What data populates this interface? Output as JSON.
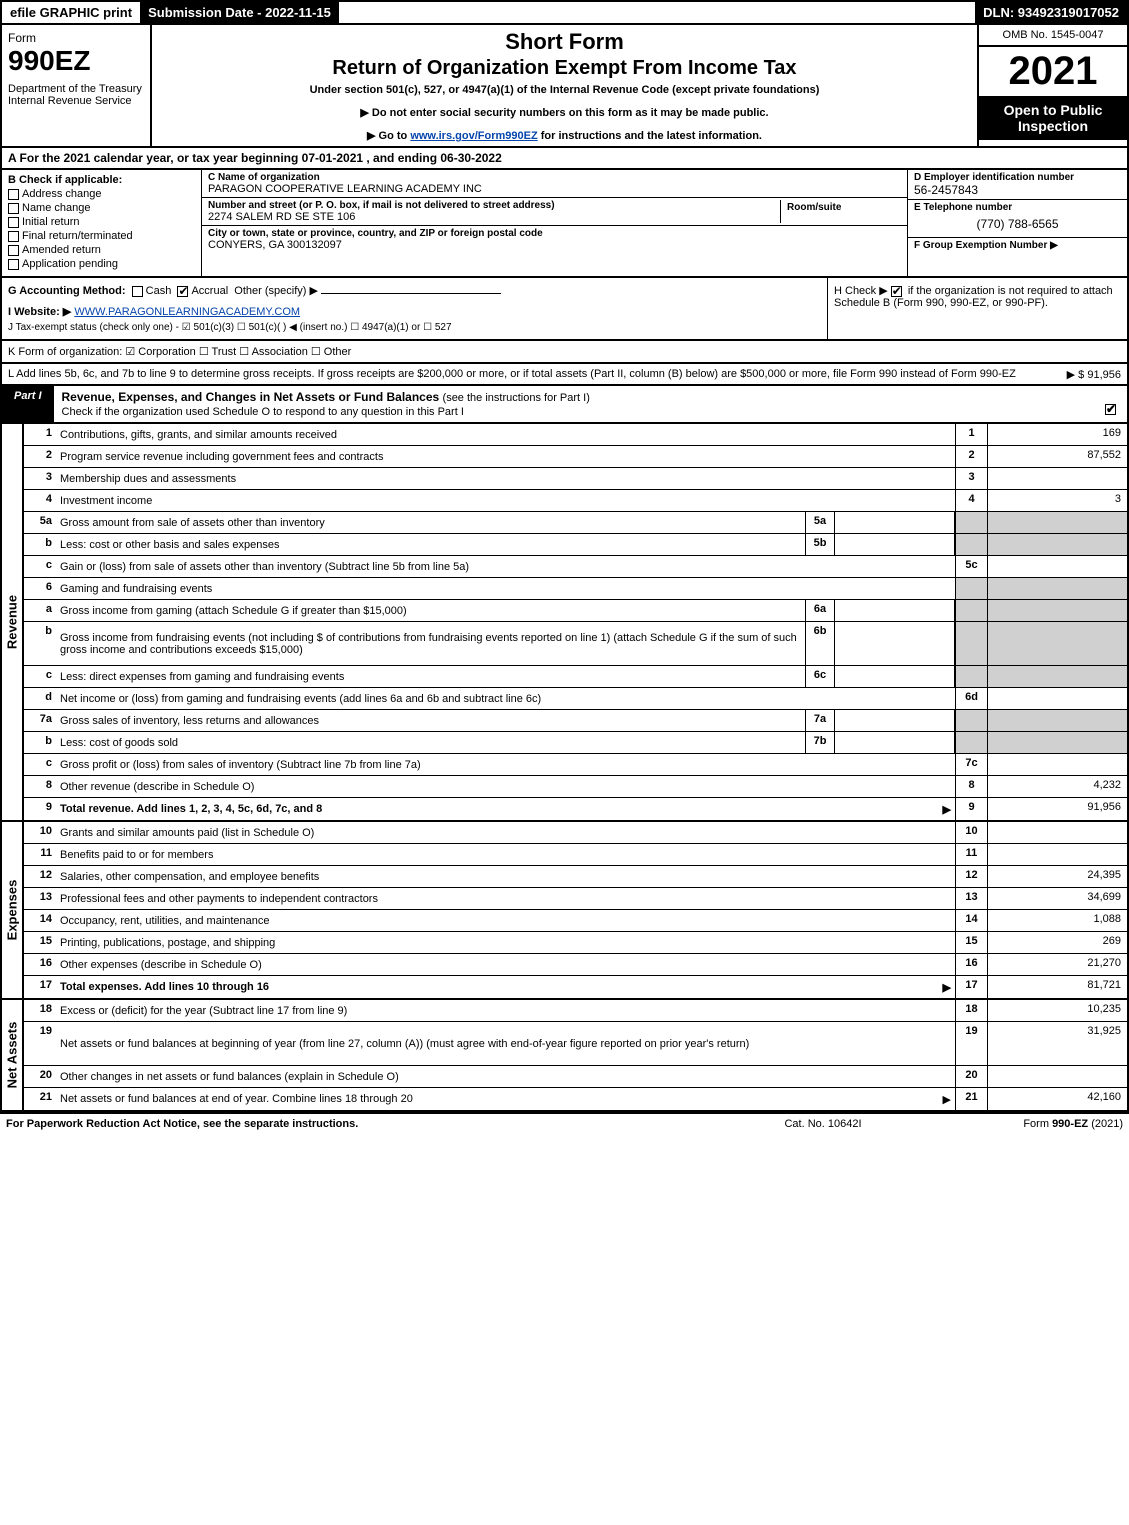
{
  "topbar": {
    "efile": "efile GRAPHIC print",
    "submission": "Submission Date - 2022-11-15",
    "dln": "DLN: 93492319017052"
  },
  "header": {
    "form_label": "Form",
    "form_number": "990EZ",
    "dept": "Department of the Treasury\nInternal Revenue Service",
    "title1": "Short Form",
    "title2": "Return of Organization Exempt From Income Tax",
    "under": "Under section 501(c), 527, or 4947(a)(1) of the Internal Revenue Code (except private foundations)",
    "instr1": "▶ Do not enter social security numbers on this form as it may be made public.",
    "instr2_pre": "▶ Go to ",
    "instr2_link": "www.irs.gov/Form990EZ",
    "instr2_post": " for instructions and the latest information.",
    "omb": "OMB No. 1545-0047",
    "year": "2021",
    "open": "Open to Public Inspection"
  },
  "rowA": "A  For the 2021 calendar year, or tax year beginning 07-01-2021 , and ending 06-30-2022",
  "colB": {
    "hdr": "B  Check if applicable:",
    "items": [
      "Address change",
      "Name change",
      "Initial return",
      "Final return/terminated",
      "Amended return",
      "Application pending"
    ]
  },
  "colC": {
    "name_label": "C Name of organization",
    "name": "PARAGON COOPERATIVE LEARNING ACADEMY INC",
    "street_label": "Number and street (or P. O. box, if mail is not delivered to street address)",
    "street": "2274 SALEM RD SE STE 106",
    "room_label": "Room/suite",
    "city_label": "City or town, state or province, country, and ZIP or foreign postal code",
    "city": "CONYERS, GA  300132097"
  },
  "colD": {
    "ein_label": "D Employer identification number",
    "ein": "56-2457843",
    "tel_label": "E Telephone number",
    "tel": "(770) 788-6565",
    "group_label": "F Group Exemption Number   ▶"
  },
  "rowG": {
    "label": "G Accounting Method:",
    "cash": "Cash",
    "accrual": "Accrual",
    "other": "Other (specify) ▶"
  },
  "rowH": {
    "text1": "H  Check ▶",
    "text2": "if the organization is not required to attach Schedule B (Form 990, 990-EZ, or 990-PF)."
  },
  "rowI": {
    "label": "I Website: ▶",
    "url": "WWW.PARAGONLEARNINGACADEMY.COM"
  },
  "rowJ": "J Tax-exempt status (check only one) - ☑ 501(c)(3)  ☐ 501(c)(  ) ◀ (insert no.)  ☐ 4947(a)(1) or  ☐ 527",
  "rowK": "K Form of organization:   ☑ Corporation   ☐ Trust   ☐ Association   ☐ Other",
  "rowL": {
    "text": "L Add lines 5b, 6c, and 7b to line 9 to determine gross receipts. If gross receipts are $200,000 or more, or if total assets (Part II, column (B) below) are $500,000 or more, file Form 990 instead of Form 990-EZ",
    "amount": "▶ $ 91,956"
  },
  "part1": {
    "tab": "Part I",
    "title": "Revenue, Expenses, and Changes in Net Assets or Fund Balances",
    "sub": "(see the instructions for Part I)",
    "check": "Check if the organization used Schedule O to respond to any question in this Part I"
  },
  "sections": {
    "revenue": "Revenue",
    "expenses": "Expenses",
    "netassets": "Net Assets"
  },
  "lines": [
    {
      "n": "1",
      "desc": "Contributions, gifts, grants, and similar amounts received",
      "num": "1",
      "val": "169"
    },
    {
      "n": "2",
      "desc": "Program service revenue including government fees and contracts",
      "num": "2",
      "val": "87,552"
    },
    {
      "n": "3",
      "desc": "Membership dues and assessments",
      "num": "3",
      "val": ""
    },
    {
      "n": "4",
      "desc": "Investment income",
      "num": "4",
      "val": "3"
    },
    {
      "n": "5a",
      "desc": "Gross amount from sale of assets other than inventory",
      "sub": "5a",
      "grey": true
    },
    {
      "n": "b",
      "desc": "Less: cost or other basis and sales expenses",
      "sub": "5b",
      "grey": true
    },
    {
      "n": "c",
      "desc": "Gain or (loss) from sale of assets other than inventory (Subtract line 5b from line 5a)",
      "num": "5c",
      "val": ""
    },
    {
      "n": "6",
      "desc": "Gaming and fundraising events",
      "noval": true,
      "grey": true
    },
    {
      "n": "a",
      "desc": "Gross income from gaming (attach Schedule G if greater than $15,000)",
      "sub": "6a",
      "grey": true
    },
    {
      "n": "b",
      "desc": "Gross income from fundraising events (not including $                  of contributions from fundraising events reported on line 1) (attach Schedule G if the sum of such gross income and contributions exceeds $15,000)",
      "sub": "6b",
      "grey": true,
      "tall": true
    },
    {
      "n": "c",
      "desc": "Less: direct expenses from gaming and fundraising events",
      "sub": "6c",
      "grey": true
    },
    {
      "n": "d",
      "desc": "Net income or (loss) from gaming and fundraising events (add lines 6a and 6b and subtract line 6c)",
      "num": "6d",
      "val": ""
    },
    {
      "n": "7a",
      "desc": "Gross sales of inventory, less returns and allowances",
      "sub": "7a",
      "grey": true
    },
    {
      "n": "b",
      "desc": "Less: cost of goods sold",
      "sub": "7b",
      "grey": true
    },
    {
      "n": "c",
      "desc": "Gross profit or (loss) from sales of inventory (Subtract line 7b from line 7a)",
      "num": "7c",
      "val": ""
    },
    {
      "n": "8",
      "desc": "Other revenue (describe in Schedule O)",
      "num": "8",
      "val": "4,232"
    },
    {
      "n": "9",
      "desc": "Total revenue. Add lines 1, 2, 3, 4, 5c, 6d, 7c, and 8",
      "num": "9",
      "val": "91,956",
      "bold": true,
      "arrow": true
    }
  ],
  "expenses": [
    {
      "n": "10",
      "desc": "Grants and similar amounts paid (list in Schedule O)",
      "num": "10",
      "val": ""
    },
    {
      "n": "11",
      "desc": "Benefits paid to or for members",
      "num": "11",
      "val": ""
    },
    {
      "n": "12",
      "desc": "Salaries, other compensation, and employee benefits",
      "num": "12",
      "val": "24,395"
    },
    {
      "n": "13",
      "desc": "Professional fees and other payments to independent contractors",
      "num": "13",
      "val": "34,699"
    },
    {
      "n": "14",
      "desc": "Occupancy, rent, utilities, and maintenance",
      "num": "14",
      "val": "1,088"
    },
    {
      "n": "15",
      "desc": "Printing, publications, postage, and shipping",
      "num": "15",
      "val": "269"
    },
    {
      "n": "16",
      "desc": "Other expenses (describe in Schedule O)",
      "num": "16",
      "val": "21,270"
    },
    {
      "n": "17",
      "desc": "Total expenses. Add lines 10 through 16",
      "num": "17",
      "val": "81,721",
      "bold": true,
      "arrow": true
    }
  ],
  "netassets": [
    {
      "n": "18",
      "desc": "Excess or (deficit) for the year (Subtract line 17 from line 9)",
      "num": "18",
      "val": "10,235"
    },
    {
      "n": "19",
      "desc": "Net assets or fund balances at beginning of year (from line 27, column (A)) (must agree with end-of-year figure reported on prior year's return)",
      "num": "19",
      "val": "31,925",
      "tall": true
    },
    {
      "n": "20",
      "desc": "Other changes in net assets or fund balances (explain in Schedule O)",
      "num": "20",
      "val": ""
    },
    {
      "n": "21",
      "desc": "Net assets or fund balances at end of year. Combine lines 18 through 20",
      "num": "21",
      "val": "42,160",
      "arrow": true
    }
  ],
  "footer": {
    "left": "For Paperwork Reduction Act Notice, see the separate instructions.",
    "mid": "Cat. No. 10642I",
    "right_pre": "Form ",
    "right_bold": "990-EZ",
    "right_post": " (2021)"
  }
}
